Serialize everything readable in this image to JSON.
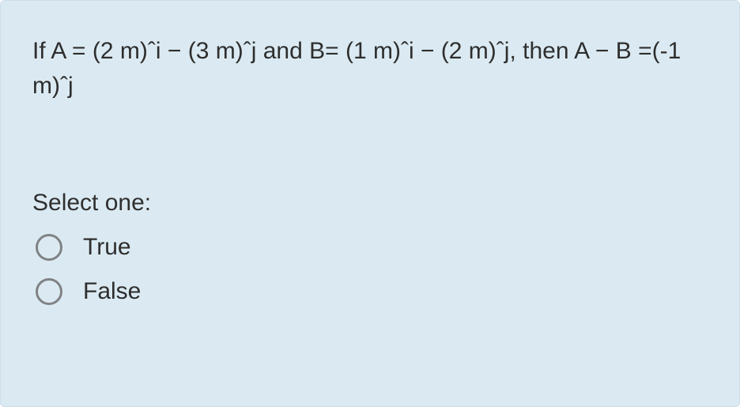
{
  "card": {
    "background_color": "#dbeaf2",
    "border_color": "#cdddea",
    "text_color": "#2e2e2e",
    "radio_border_color": "#808285",
    "font_size_pt": 22
  },
  "question": {
    "text": "If A = (2 m)ˆi − (3 m)ˆj and B= (1 m)ˆi − (2 m)ˆj, then A − B =(-1 m)ˆj"
  },
  "prompt": {
    "label": "Select one:"
  },
  "options": [
    {
      "label": "True",
      "selected": false
    },
    {
      "label": "False",
      "selected": false
    }
  ]
}
